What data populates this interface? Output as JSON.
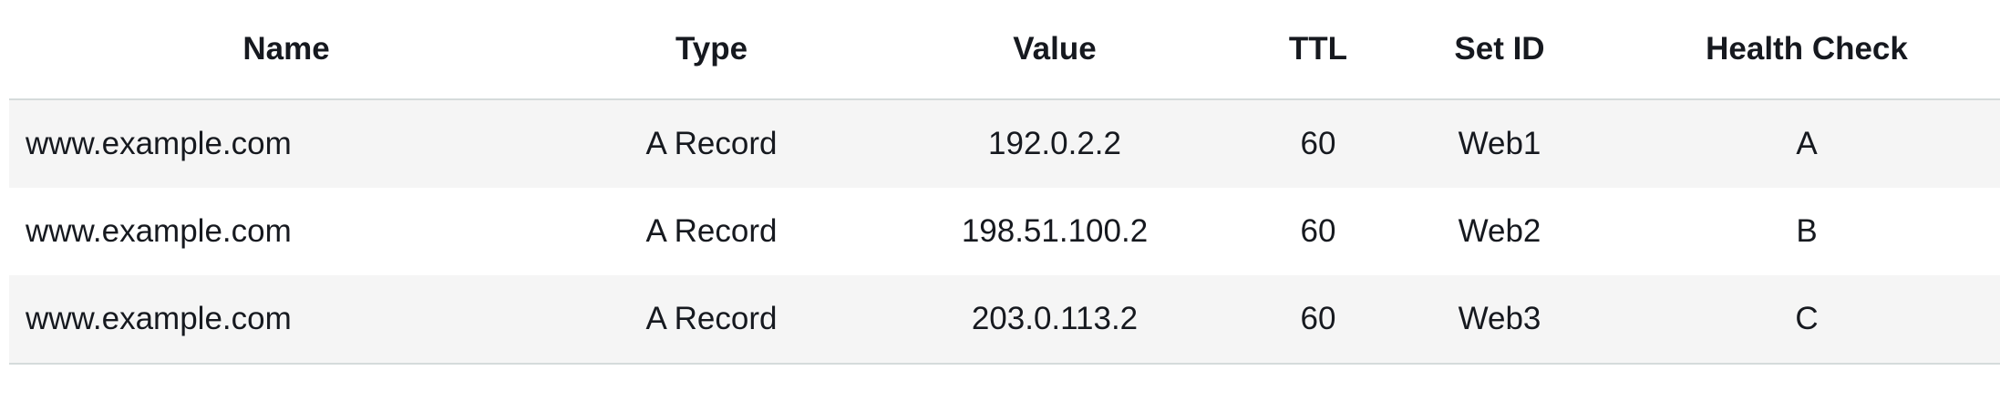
{
  "table": {
    "columns": [
      "Name",
      "Type",
      "Value",
      "TTL",
      "Set ID",
      "Health Check"
    ],
    "rows": [
      [
        "www.example.com",
        "A Record",
        "192.0.2.2",
        "60",
        "Web1",
        "A"
      ],
      [
        "www.example.com",
        "A Record",
        "198.51.100.2",
        "60",
        "Web2",
        "B"
      ],
      [
        "www.example.com",
        "A Record",
        "203.0.113.2",
        "60",
        "Web3",
        "C"
      ]
    ]
  },
  "colors": {
    "row_stripe": "#f5f5f5",
    "border": "#d5dbdb",
    "text": "#16191f"
  }
}
